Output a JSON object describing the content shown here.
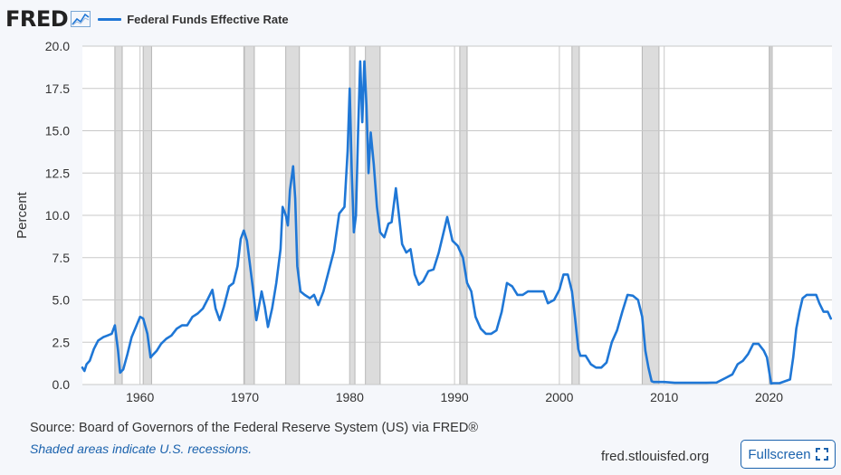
{
  "header": {
    "logo_text": "FRED",
    "legend_label": "Federal Funds Effective Rate",
    "series_color": "#1f77d6"
  },
  "footer": {
    "source": "Source: Board of Governors of the Federal Reserve System (US) via FRED®",
    "note": "Shaded areas indicate U.S. recessions.",
    "url": "fred.stlouisfed.org",
    "fullscreen_label": "Fullscreen"
  },
  "chart_data": {
    "type": "line",
    "title": "Federal Funds Effective Rate",
    "xlabel": "",
    "ylabel": "Percent",
    "xlim": [
      1954.5,
      2026.0
    ],
    "ylim": [
      0,
      20
    ],
    "y_ticks": [
      "0.0",
      "2.5",
      "5.0",
      "7.5",
      "10.0",
      "12.5",
      "15.0",
      "17.5",
      "20.0"
    ],
    "x_ticks": [
      "1960",
      "1970",
      "1980",
      "1990",
      "2000",
      "2010",
      "2020"
    ],
    "grid": true,
    "recessions": [
      [
        1957.6,
        1958.3
      ],
      [
        1960.3,
        1961.1
      ],
      [
        1969.9,
        1970.9
      ],
      [
        1973.9,
        1975.2
      ],
      [
        1980.0,
        1980.5
      ],
      [
        1981.5,
        1982.9
      ],
      [
        1990.5,
        1991.2
      ],
      [
        2001.2,
        2001.9
      ],
      [
        2007.9,
        2009.5
      ],
      [
        2020.1,
        2020.3
      ]
    ],
    "series": [
      {
        "name": "Federal Funds Effective Rate",
        "x": [
          1954.5,
          1954.7,
          1954.9,
          1955.2,
          1955.6,
          1956.0,
          1956.5,
          1956.9,
          1957.3,
          1957.6,
          1957.9,
          1958.1,
          1958.4,
          1958.8,
          1959.2,
          1959.6,
          1960.0,
          1960.3,
          1960.7,
          1961.0,
          1961.3,
          1961.6,
          1962.0,
          1962.5,
          1963.0,
          1963.5,
          1964.0,
          1964.5,
          1965.0,
          1965.5,
          1966.0,
          1966.5,
          1966.9,
          1967.2,
          1967.6,
          1968.0,
          1968.5,
          1968.9,
          1969.3,
          1969.6,
          1969.9,
          1970.2,
          1970.5,
          1970.8,
          1971.1,
          1971.3,
          1971.6,
          1971.9,
          1972.2,
          1972.6,
          1973.0,
          1973.4,
          1973.6,
          1973.9,
          1974.1,
          1974.3,
          1974.6,
          1974.8,
          1975.0,
          1975.3,
          1975.7,
          1976.2,
          1976.6,
          1977.0,
          1977.5,
          1978.0,
          1978.5,
          1979.0,
          1979.5,
          1979.8,
          1980.0,
          1980.2,
          1980.4,
          1980.6,
          1980.8,
          1981.0,
          1981.2,
          1981.4,
          1981.6,
          1981.8,
          1982.0,
          1982.3,
          1982.6,
          1982.9,
          1983.3,
          1983.7,
          1984.0,
          1984.4,
          1984.7,
          1985.0,
          1985.4,
          1985.8,
          1986.2,
          1986.6,
          1987.0,
          1987.5,
          1988.0,
          1988.5,
          1989.0,
          1989.3,
          1989.8,
          1990.3,
          1990.8,
          1991.2,
          1991.6,
          1992.0,
          1992.5,
          1993.0,
          1993.5,
          1994.0,
          1994.5,
          1995.0,
          1995.5,
          1996.0,
          1996.5,
          1997.0,
          1997.5,
          1998.0,
          1998.5,
          1998.9,
          1999.5,
          2000.0,
          2000.4,
          2000.8,
          2001.2,
          2001.5,
          2001.8,
          2002.0,
          2002.5,
          2003.0,
          2003.5,
          2004.0,
          2004.5,
          2005.0,
          2005.5,
          2006.0,
          2006.5,
          2007.0,
          2007.5,
          2007.9,
          2008.2,
          2008.5,
          2008.8,
          2009.0,
          2010.0,
          2011.0,
          2012.0,
          2013.0,
          2014.0,
          2015.0,
          2015.9,
          2016.5,
          2017.0,
          2017.5,
          2018.0,
          2018.5,
          2019.0,
          2019.5,
          2019.8,
          2020.2,
          2020.4,
          2021.0,
          2022.0,
          2022.3,
          2022.6,
          2022.9,
          2023.2,
          2023.6,
          2024.0,
          2024.5,
          2024.8,
          2025.2,
          2025.6,
          2025.9
        ],
        "values": [
          1.0,
          0.8,
          1.2,
          1.4,
          2.1,
          2.6,
          2.8,
          2.9,
          3.0,
          3.5,
          2.0,
          0.7,
          0.9,
          1.8,
          2.8,
          3.4,
          4.0,
          3.9,
          3.0,
          1.6,
          1.8,
          2.0,
          2.4,
          2.7,
          2.9,
          3.3,
          3.5,
          3.5,
          4.0,
          4.2,
          4.5,
          5.1,
          5.6,
          4.5,
          3.8,
          4.6,
          5.8,
          6.0,
          7.0,
          8.6,
          9.1,
          8.5,
          7.0,
          5.5,
          3.8,
          4.5,
          5.5,
          4.6,
          3.4,
          4.5,
          6.0,
          8.0,
          10.5,
          10.0,
          9.4,
          11.5,
          12.9,
          11.0,
          7.0,
          5.5,
          5.3,
          5.1,
          5.3,
          4.7,
          5.5,
          6.7,
          7.9,
          10.1,
          10.5,
          13.8,
          17.5,
          12.5,
          9.0,
          10.0,
          15.0,
          19.1,
          15.5,
          19.1,
          16.5,
          12.5,
          14.9,
          13.0,
          10.5,
          9.0,
          8.7,
          9.5,
          9.6,
          11.6,
          10.0,
          8.3,
          7.8,
          8.0,
          6.5,
          5.9,
          6.1,
          6.7,
          6.8,
          7.8,
          9.1,
          9.9,
          8.5,
          8.2,
          7.5,
          6.0,
          5.5,
          4.0,
          3.3,
          3.0,
          3.0,
          3.2,
          4.3,
          6.0,
          5.8,
          5.3,
          5.3,
          5.5,
          5.5,
          5.5,
          5.5,
          4.8,
          5.0,
          5.6,
          6.5,
          6.5,
          5.5,
          3.9,
          2.1,
          1.7,
          1.7,
          1.2,
          1.0,
          1.0,
          1.3,
          2.5,
          3.2,
          4.3,
          5.3,
          5.25,
          5.0,
          4.0,
          2.0,
          1.0,
          0.2,
          0.15,
          0.15,
          0.1,
          0.1,
          0.1,
          0.1,
          0.12,
          0.4,
          0.6,
          1.2,
          1.4,
          1.8,
          2.4,
          2.4,
          2.0,
          1.6,
          0.06,
          0.08,
          0.08,
          0.3,
          1.6,
          3.3,
          4.3,
          5.1,
          5.3,
          5.3,
          5.3,
          4.8,
          4.3,
          4.3,
          3.9
        ]
      }
    ]
  }
}
